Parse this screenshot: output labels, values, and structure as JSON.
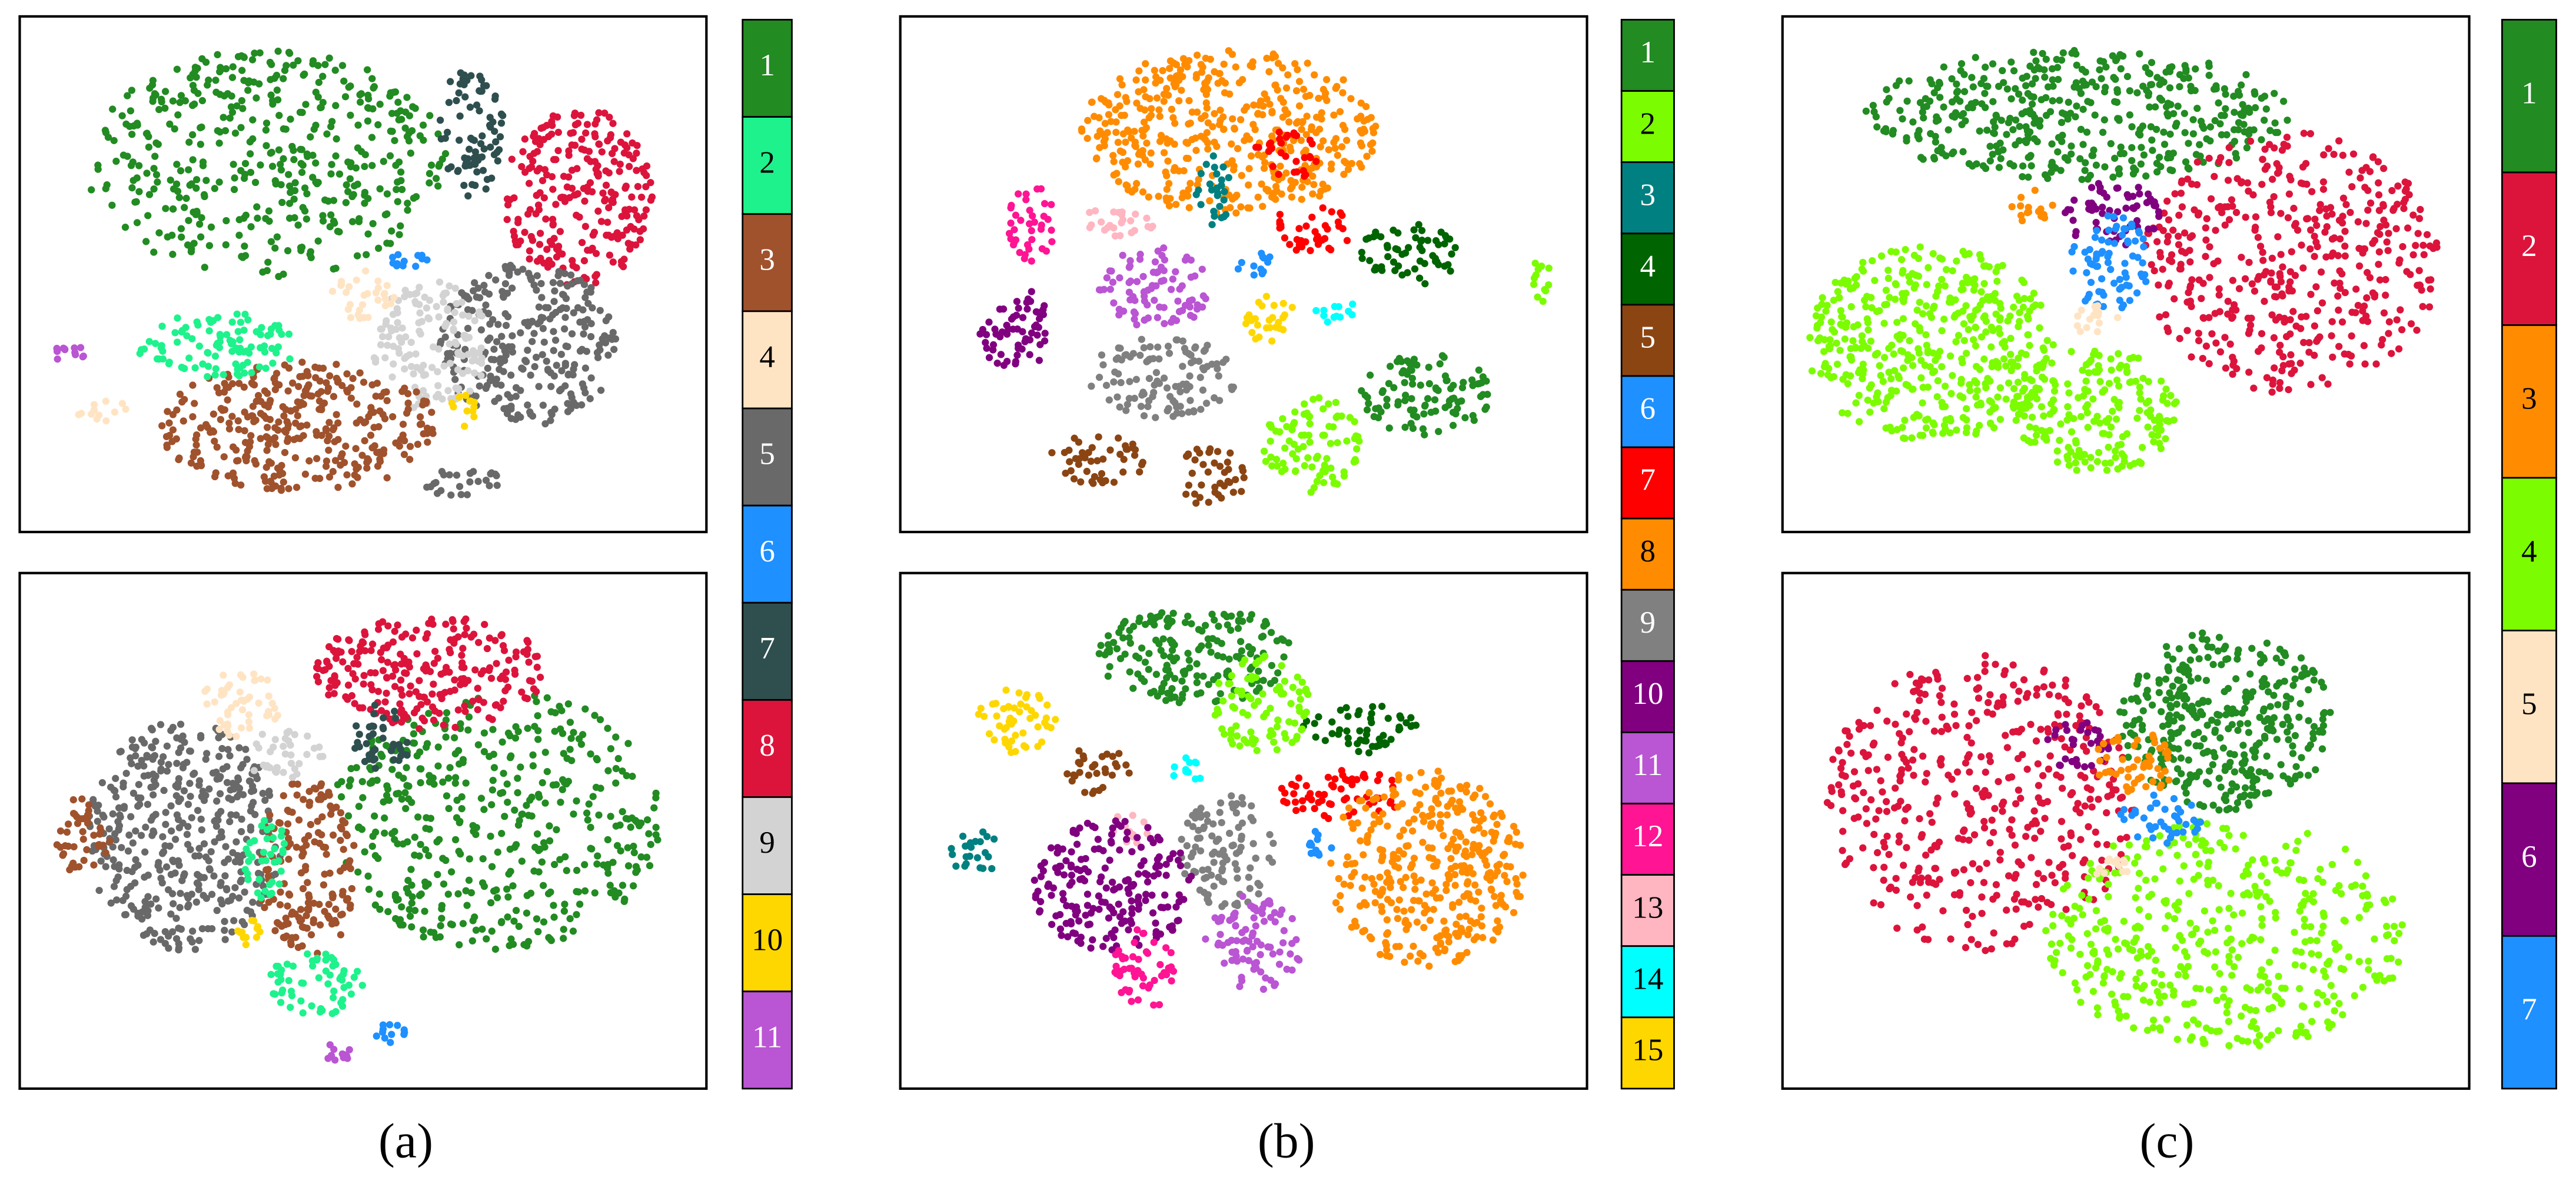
{
  "panels": [
    {
      "caption": "(a)",
      "legend": [
        {
          "label": "1",
          "color": "#228b22"
        },
        {
          "label": "2",
          "color": "#1ef28c"
        },
        {
          "label": "3",
          "color": "#a0522d"
        },
        {
          "label": "4",
          "color": "#ffe4c4"
        },
        {
          "label": "5",
          "color": "#696969"
        },
        {
          "label": "6",
          "color": "#1e90ff"
        },
        {
          "label": "7",
          "color": "#2f4f4f"
        },
        {
          "label": "8",
          "color": "#dc143c"
        },
        {
          "label": "9",
          "color": "#d3d3d3"
        },
        {
          "label": "10",
          "color": "#ffd700"
        },
        {
          "label": "11",
          "color": "#ba55d3"
        }
      ]
    },
    {
      "caption": "(b)",
      "legend": [
        {
          "label": "1",
          "color": "#228b22"
        },
        {
          "label": "2",
          "color": "#7cfc00"
        },
        {
          "label": "3",
          "color": "#008080"
        },
        {
          "label": "4",
          "color": "#006400"
        },
        {
          "label": "5",
          "color": "#8b4513"
        },
        {
          "label": "6",
          "color": "#1e90ff"
        },
        {
          "label": "7",
          "color": "#ff0000"
        },
        {
          "label": "8",
          "color": "#ff8c00"
        },
        {
          "label": "9",
          "color": "#808080"
        },
        {
          "label": "10",
          "color": "#800080"
        },
        {
          "label": "11",
          "color": "#ba55d3"
        },
        {
          "label": "12",
          "color": "#ff1493"
        },
        {
          "label": "13",
          "color": "#ffb6c1"
        },
        {
          "label": "14",
          "color": "#00ffff"
        },
        {
          "label": "15",
          "color": "#ffd700"
        }
      ]
    },
    {
      "caption": "(c)",
      "legend": [
        {
          "label": "1",
          "color": "#228b22"
        },
        {
          "label": "2",
          "color": "#dc143c"
        },
        {
          "label": "3",
          "color": "#ff8c00"
        },
        {
          "label": "4",
          "color": "#7cfc00"
        },
        {
          "label": "5",
          "color": "#ffe4c4"
        },
        {
          "label": "6",
          "color": "#800080"
        },
        {
          "label": "7",
          "color": "#1e90ff"
        }
      ]
    }
  ]
}
